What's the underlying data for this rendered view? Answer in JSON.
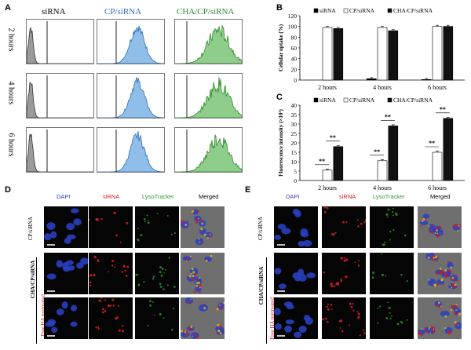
{
  "panel_letters": [
    "A",
    "B",
    "C",
    "D",
    "E"
  ],
  "panelA": {
    "columns": [
      {
        "label": "siRNA",
        "color": "#000000"
      },
      {
        "label": "CP/siRNA",
        "color": "#2f6db5"
      },
      {
        "label": "CHA/CP/siRNA",
        "color": "#2f8a2f"
      }
    ],
    "rows": [
      "2 hours",
      "4 hours",
      "6 hours"
    ],
    "hist_colors": {
      "siRNA": "#9a9a9a",
      "CP": "#8fbfe8",
      "CHA": "#8fce8a"
    }
  },
  "chart_data": [
    {
      "type": "bar",
      "panel": "B",
      "ylabel": "Cellular uptake (%)",
      "categories": [
        "2 hours",
        "4 hours",
        "6 hours"
      ],
      "ylim": [
        0,
        120
      ],
      "yticks": [
        "0",
        "20",
        "40",
        "60",
        "80",
        "100",
        "120"
      ],
      "series": [
        {
          "name": "siRNA",
          "values": [
            0,
            2.5,
            1
          ],
          "fill": "#000000"
        },
        {
          "name": "CP/siRNA",
          "values": [
            98,
            98,
            100
          ],
          "fill": "#ffffff"
        },
        {
          "name": "CHA/CP/siRNA",
          "values": [
            96,
            92,
            100
          ],
          "fill": "#111111"
        }
      ]
    },
    {
      "type": "bar",
      "panel": "C",
      "ylabel": "Fluorescence intensity (×10³)",
      "categories": [
        "2 hours",
        "4 hours",
        "6 hours"
      ],
      "ylim": [
        0,
        40
      ],
      "yticks": [
        "0",
        "5",
        "10",
        "15",
        "20",
        "25",
        "30",
        "35",
        "40"
      ],
      "series": [
        {
          "name": "siRNA",
          "values": [
            0,
            0,
            0
          ],
          "fill": "#000000"
        },
        {
          "name": "CP/siRNA",
          "values": [
            5.5,
            10.5,
            15
          ],
          "fill": "#ffffff"
        },
        {
          "name": "CHA/CP/siRNA",
          "values": [
            18,
            29,
            33
          ],
          "fill": "#111111"
        }
      ],
      "significance": [
        "**",
        "**",
        "**",
        "**",
        "**",
        "**"
      ]
    }
  ],
  "panelD": {
    "columns": [
      "DAPI",
      "siRNA",
      "LysoTracker",
      "Merged"
    ],
    "group1": "CP/siRNA",
    "group2": "CHA/CP/siRNA",
    "group3": "Free HA pretreated"
  },
  "panelE": {
    "columns": [
      "DAPI",
      "siRNA",
      "LysoTracker",
      "Merged"
    ],
    "group1": "CP/siRNA",
    "group2": "CHA/CP/siRNA",
    "group3": "Free HA pretreated"
  },
  "colors": {
    "dapi": "#2a3fbf",
    "sirna": "#cc1e1e",
    "lyso": "#2f9a2f"
  }
}
